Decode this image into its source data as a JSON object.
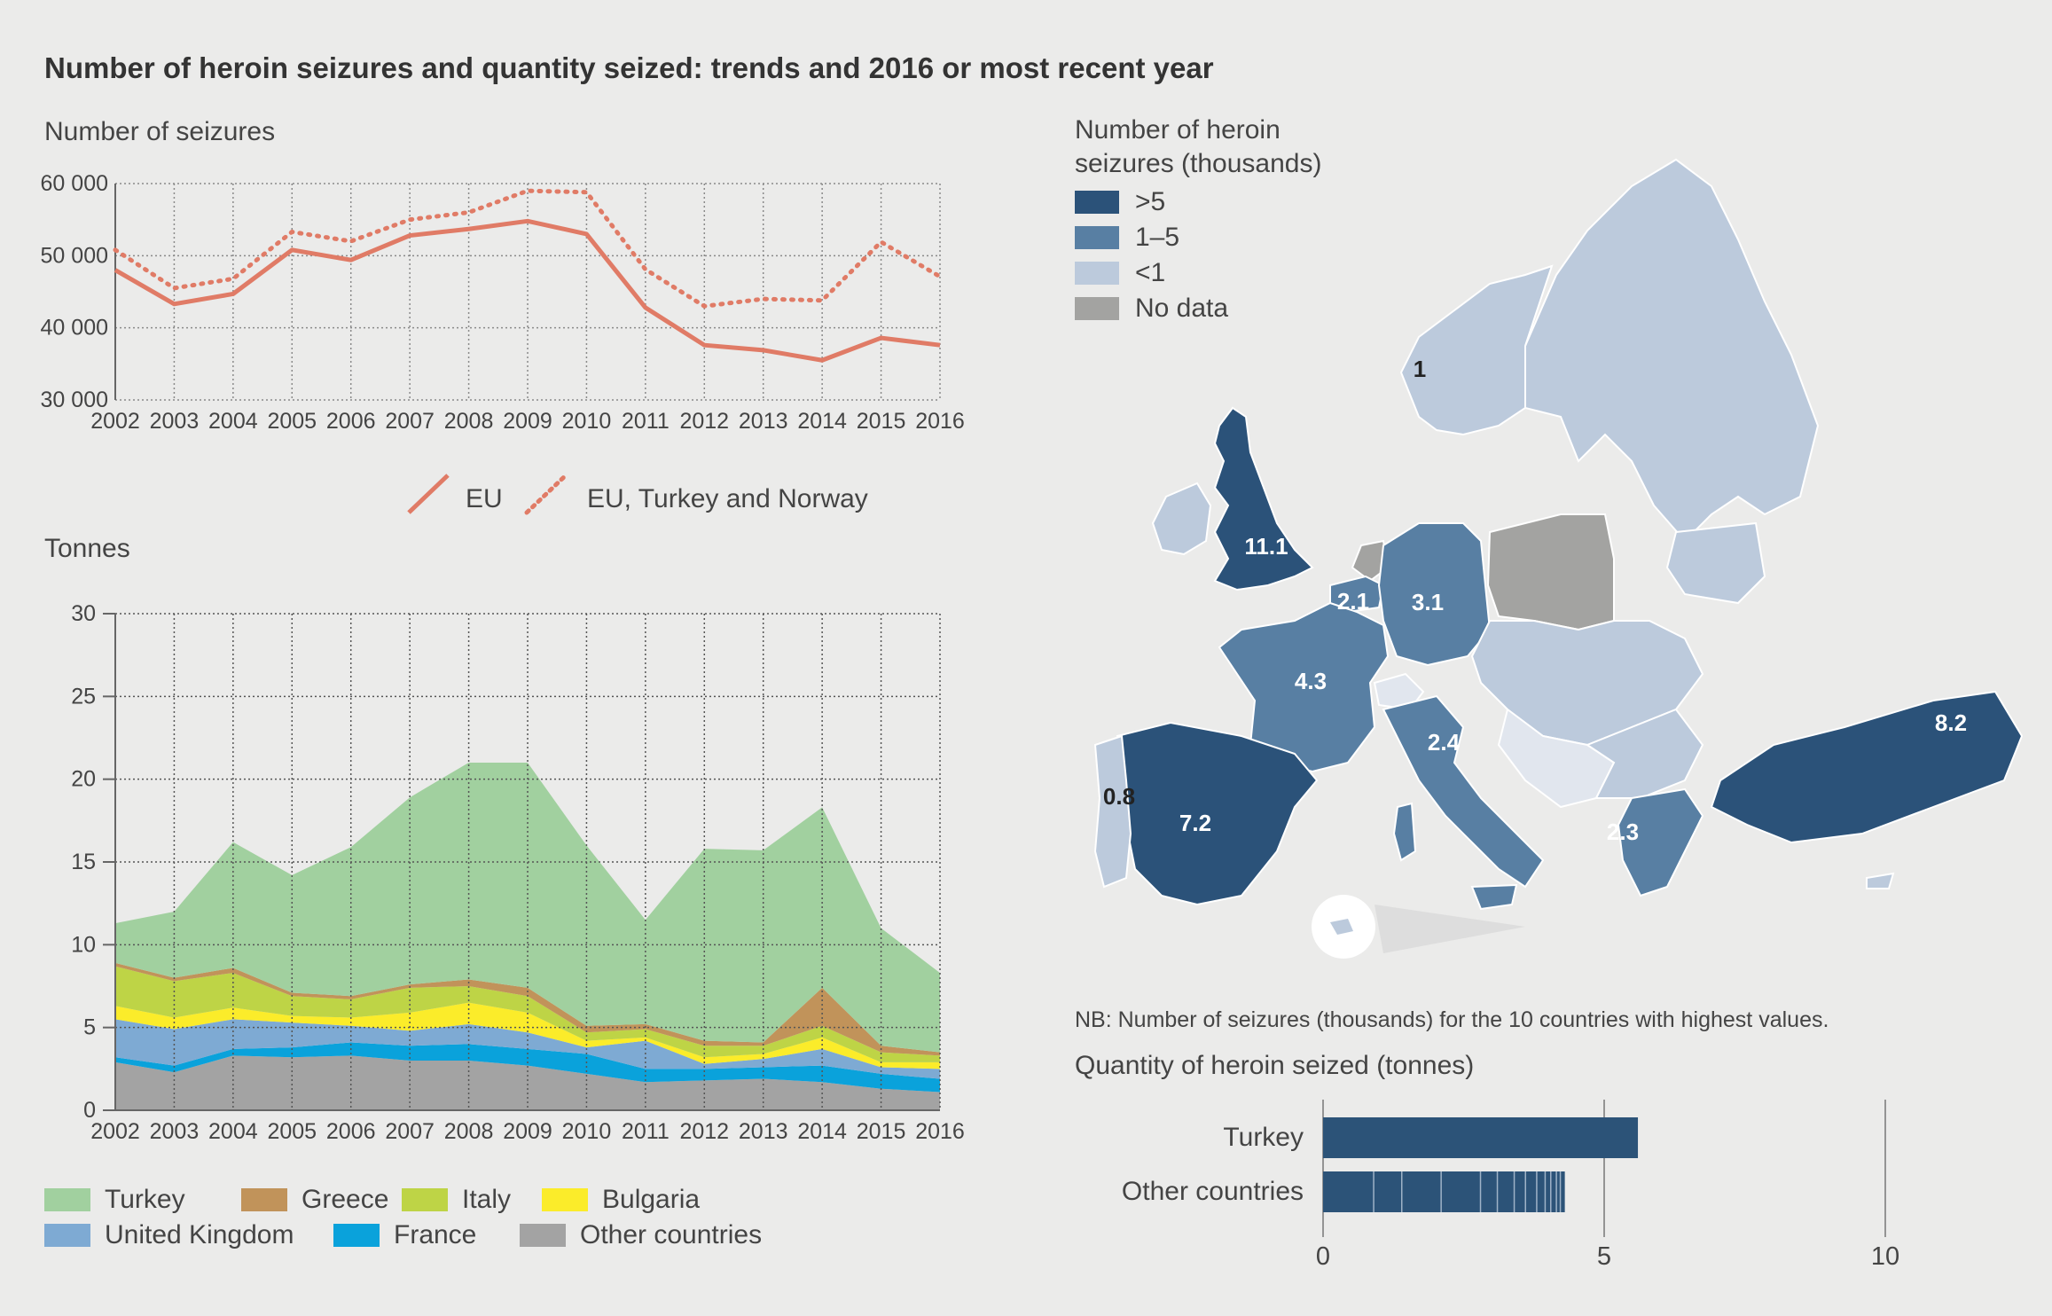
{
  "title": "Number of heroin seizures and quantity seized: trends and 2016 or most recent year",
  "seizures_chart_label": "Number of seizures",
  "tonnes_chart_label": "Tonnes",
  "colors": {
    "line": "#e07b66",
    "Turkey": "#a1d09f",
    "Greece": "#c1935a",
    "Italy": "#bed446",
    "Bulgaria": "#fbec2a",
    "United Kingdom": "#7eaad3",
    "France": "#0aa2db",
    "Other countries": "#a3a3a3",
    "map_gt5": "#2b5279",
    "map_1to5": "#587fa3",
    "map_lt1": "#bccadc",
    "map_nodata": "#a3a3a1",
    "bar": "#2c5378"
  },
  "chart_data": [
    {
      "type": "line",
      "x": [
        2002,
        2003,
        2004,
        2005,
        2006,
        2007,
        2008,
        2009,
        2010,
        2011,
        2012,
        2013,
        2014,
        2015,
        2016
      ],
      "ylim": [
        30000,
        60000
      ],
      "yticks": [
        "30 000",
        "40 000",
        "50 000",
        "60 000"
      ],
      "ytick_values": [
        30000,
        40000,
        50000,
        60000
      ],
      "grid": true,
      "series": [
        {
          "name": "EU",
          "style": "solid",
          "values": [
            48000,
            43300,
            44700,
            50800,
            49400,
            52800,
            53700,
            54800,
            53000,
            42800,
            37600,
            36900,
            35500,
            38600,
            37600
          ]
        },
        {
          "name": "EU, Turkey and Norway",
          "style": "dotted",
          "values": [
            50800,
            45500,
            46800,
            53300,
            52000,
            55000,
            56000,
            59000,
            58800,
            48100,
            43000,
            44000,
            43800,
            51900,
            47100
          ]
        }
      ]
    },
    {
      "type": "area",
      "x": [
        2002,
        2003,
        2004,
        2005,
        2006,
        2007,
        2008,
        2009,
        2010,
        2011,
        2012,
        2013,
        2014,
        2015,
        2016
      ],
      "ylim": [
        0,
        30
      ],
      "yticks": [
        "0",
        "5",
        "10",
        "15",
        "20",
        "25",
        "30"
      ],
      "ytick_values": [
        0,
        5,
        10,
        15,
        20,
        25,
        30
      ],
      "grid": true,
      "legend_position": "bottom",
      "series": [
        {
          "name": "Other countries",
          "values": [
            2.9,
            2.3,
            3.3,
            3.2,
            3.3,
            3.0,
            3.0,
            2.7,
            2.2,
            1.7,
            1.8,
            1.9,
            1.7,
            1.3,
            1.1
          ]
        },
        {
          "name": "France",
          "values": [
            0.3,
            0.4,
            0.4,
            0.6,
            0.8,
            0.9,
            1.0,
            1.0,
            1.2,
            0.8,
            0.7,
            0.7,
            1.0,
            0.9,
            0.8
          ]
        },
        {
          "name": "United Kingdom",
          "values": [
            2.3,
            2.2,
            1.8,
            1.5,
            1.0,
            0.9,
            1.2,
            1.0,
            0.4,
            1.7,
            0.3,
            0.5,
            1.0,
            0.4,
            0.6
          ]
        },
        {
          "name": "Bulgaria",
          "values": [
            0.8,
            0.7,
            0.7,
            0.4,
            0.5,
            1.1,
            1.3,
            1.2,
            0.4,
            0.2,
            0.4,
            0.3,
            0.7,
            0.3,
            0.4
          ]
        },
        {
          "name": "Italy",
          "values": [
            2.4,
            2.2,
            2.1,
            1.2,
            1.1,
            1.5,
            1.0,
            1.0,
            0.5,
            0.5,
            0.7,
            0.5,
            0.7,
            0.6,
            0.4
          ]
        },
        {
          "name": "Greece",
          "values": [
            0.2,
            0.2,
            0.3,
            0.2,
            0.2,
            0.2,
            0.4,
            0.5,
            0.4,
            0.3,
            0.3,
            0.2,
            2.3,
            0.4,
            0.2
          ]
        },
        {
          "name": "Turkey",
          "values": [
            2.4,
            4.0,
            7.6,
            7.1,
            9.0,
            11.3,
            13.1,
            13.6,
            10.9,
            6.3,
            11.6,
            11.6,
            10.9,
            7.1,
            4.8
          ]
        }
      ]
    },
    {
      "type": "bar",
      "title": "Quantity of heroin seized (tonnes)",
      "categories": [
        "Turkey",
        "Other countries"
      ],
      "values": [
        5.6,
        4.3
      ],
      "xlim": [
        0,
        10
      ],
      "xticks": [
        "0",
        "5",
        "10"
      ],
      "xtick_values": [
        0,
        5,
        10
      ]
    }
  ],
  "line_legend": {
    "eu": "EU",
    "eu_tr_no": "EU, Turkey and Norway"
  },
  "area_legend": [
    {
      "name": "Turkey"
    },
    {
      "name": "Greece"
    },
    {
      "name": "Italy"
    },
    {
      "name": "Bulgaria"
    },
    {
      "name": "United Kingdom"
    },
    {
      "name": "France"
    },
    {
      "name": "Other countries"
    }
  ],
  "map": {
    "legend_title_line1": "Number of heroin",
    "legend_title_line2": "seizures (thousands)",
    "legend": [
      {
        "label": ">5",
        "key": "map_gt5"
      },
      {
        "label": "1–5",
        "key": "map_1to5"
      },
      {
        "label": "<1",
        "key": "map_lt1"
      },
      {
        "label": "No data",
        "key": "map_nodata"
      }
    ],
    "labels": {
      "uk": "11.1",
      "turkey": "8.2",
      "spain": "7.2",
      "france": "4.3",
      "germany": "3.1",
      "italy": "2.4",
      "greece": "2.3",
      "belgium": "2.1",
      "norway": "1",
      "portugal": "0.8"
    },
    "note": "NB: Number of seizures (thousands) for the 10 countries with highest values."
  }
}
